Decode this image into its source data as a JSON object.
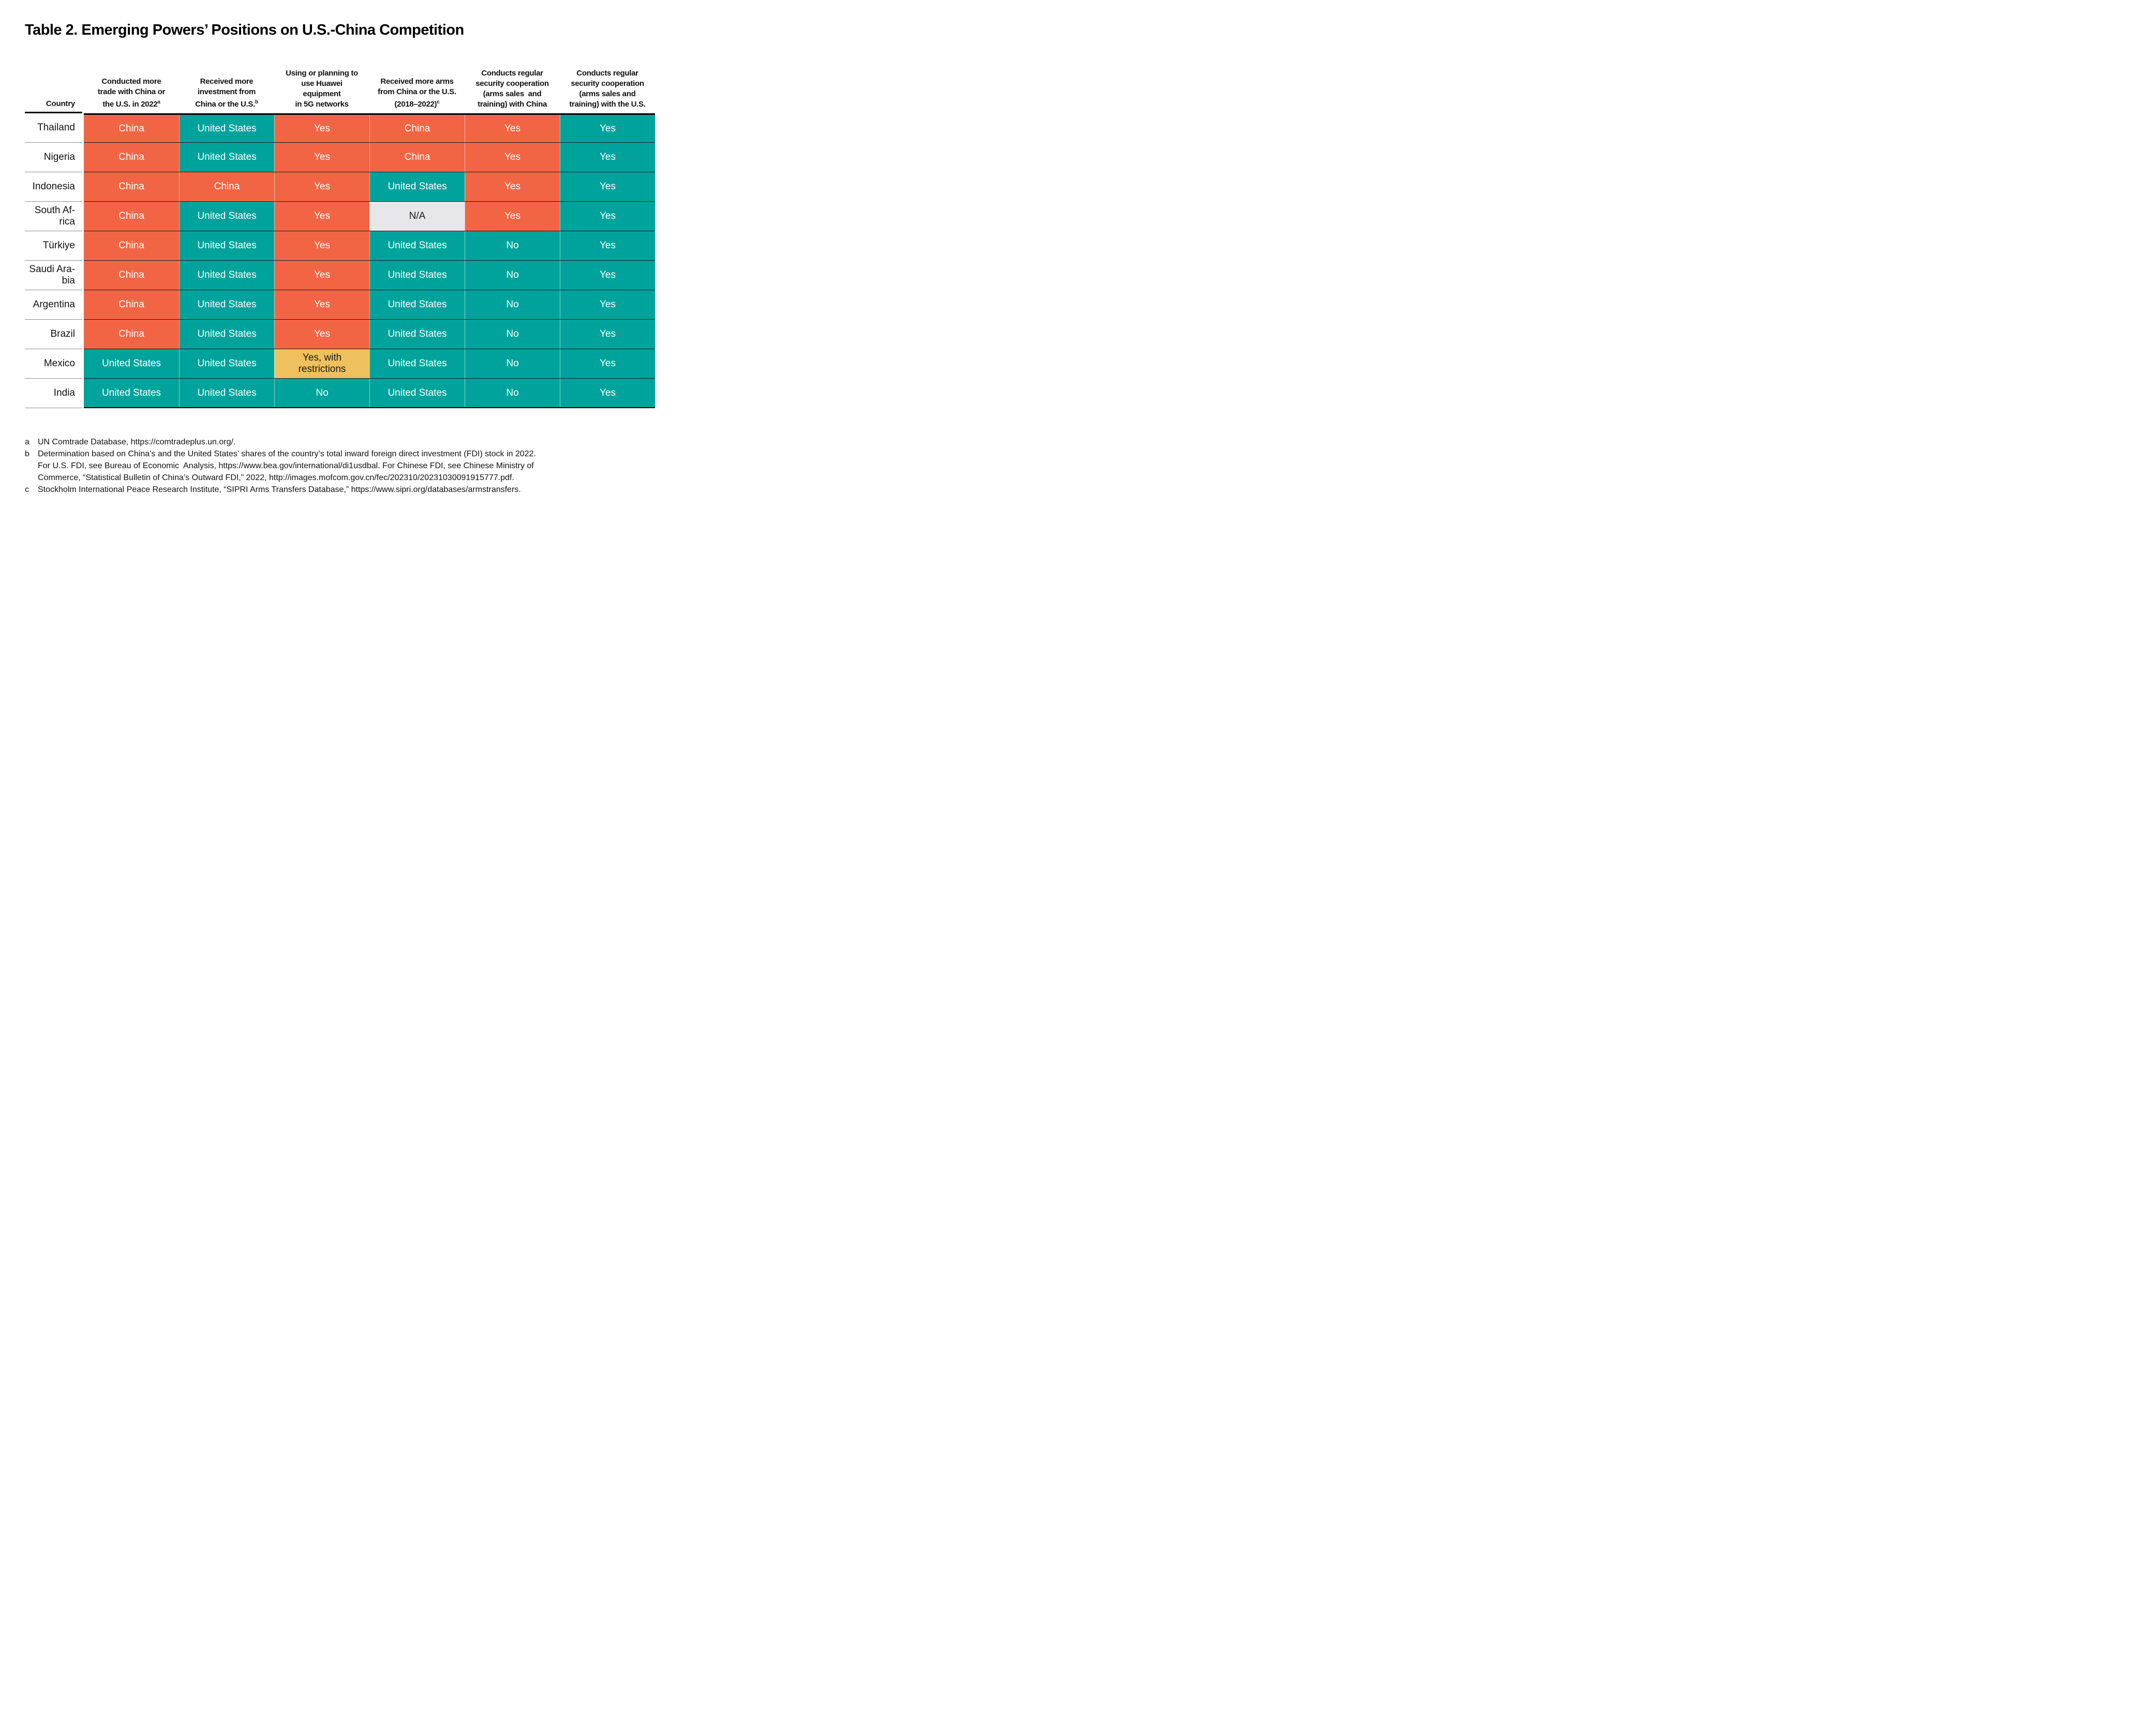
{
  "title": "Table 2. Emerging Powers’ Positions on U.S.-China Competition",
  "colors": {
    "china": {
      "bg": "#F16545",
      "fg": "#FFFFFF"
    },
    "us": {
      "bg": "#00A39B",
      "fg": "#FFFFFF"
    },
    "na": {
      "bg": "#E7E7E9",
      "fg": "#1A1A1A"
    },
    "restricted": {
      "bg": "#EFC05E",
      "fg": "#1A1A1A"
    }
  },
  "table": {
    "country_header": "Country",
    "columns": [
      {
        "lines": [
          "Conducted more",
          "trade with China or",
          "the U.S. in 2022"
        ],
        "sup": "a"
      },
      {
        "lines": [
          "Received more",
          "investment from",
          "China or the U.S."
        ],
        "sup": "b"
      },
      {
        "lines": [
          "Using or planning to",
          "use Huawei",
          "equipment",
          "in 5G networks"
        ]
      },
      {
        "lines": [
          "Received more arms",
          "from China or the U.S.",
          "(2018–2022)"
        ],
        "sup": "c"
      },
      {
        "lines": [
          "Conducts regular",
          "security cooperation",
          "(arms sales  and",
          "training) with China"
        ]
      },
      {
        "lines": [
          "Conducts regular",
          "security cooperation",
          "(arms sales and",
          "training) with the U.S."
        ]
      }
    ],
    "rows": [
      {
        "country": [
          "Thailand"
        ],
        "cells": [
          {
            "lines": [
              "China"
            ],
            "type": "china"
          },
          {
            "lines": [
              "United States"
            ],
            "type": "us"
          },
          {
            "lines": [
              "Yes"
            ],
            "type": "china"
          },
          {
            "lines": [
              "China"
            ],
            "type": "china"
          },
          {
            "lines": [
              "Yes"
            ],
            "type": "china"
          },
          {
            "lines": [
              "Yes"
            ],
            "type": "us"
          }
        ]
      },
      {
        "country": [
          "Nigeria"
        ],
        "cells": [
          {
            "lines": [
              "China"
            ],
            "type": "china"
          },
          {
            "lines": [
              "United States"
            ],
            "type": "us"
          },
          {
            "lines": [
              "Yes"
            ],
            "type": "china"
          },
          {
            "lines": [
              "China"
            ],
            "type": "china"
          },
          {
            "lines": [
              "Yes"
            ],
            "type": "china"
          },
          {
            "lines": [
              "Yes"
            ],
            "type": "us"
          }
        ]
      },
      {
        "country": [
          "Indonesia"
        ],
        "cells": [
          {
            "lines": [
              "China"
            ],
            "type": "china"
          },
          {
            "lines": [
              "China"
            ],
            "type": "china"
          },
          {
            "lines": [
              "Yes"
            ],
            "type": "china"
          },
          {
            "lines": [
              "United States"
            ],
            "type": "us"
          },
          {
            "lines": [
              "Yes"
            ],
            "type": "china"
          },
          {
            "lines": [
              "Yes"
            ],
            "type": "us"
          }
        ]
      },
      {
        "country": [
          "South Af-",
          "rica"
        ],
        "cells": [
          {
            "lines": [
              "China"
            ],
            "type": "china"
          },
          {
            "lines": [
              "United States"
            ],
            "type": "us"
          },
          {
            "lines": [
              "Yes"
            ],
            "type": "china"
          },
          {
            "lines": [
              "N/A"
            ],
            "type": "na"
          },
          {
            "lines": [
              "Yes"
            ],
            "type": "china"
          },
          {
            "lines": [
              "Yes"
            ],
            "type": "us"
          }
        ]
      },
      {
        "country": [
          "Türkiye"
        ],
        "cells": [
          {
            "lines": [
              "China"
            ],
            "type": "china"
          },
          {
            "lines": [
              "United States"
            ],
            "type": "us"
          },
          {
            "lines": [
              "Yes"
            ],
            "type": "china"
          },
          {
            "lines": [
              "United States"
            ],
            "type": "us"
          },
          {
            "lines": [
              "No"
            ],
            "type": "us"
          },
          {
            "lines": [
              "Yes"
            ],
            "type": "us"
          }
        ]
      },
      {
        "country": [
          "Saudi Ara-",
          "bia"
        ],
        "cells": [
          {
            "lines": [
              "China"
            ],
            "type": "china"
          },
          {
            "lines": [
              "United States"
            ],
            "type": "us"
          },
          {
            "lines": [
              "Yes"
            ],
            "type": "china"
          },
          {
            "lines": [
              "United States"
            ],
            "type": "us"
          },
          {
            "lines": [
              "No"
            ],
            "type": "us"
          },
          {
            "lines": [
              "Yes"
            ],
            "type": "us"
          }
        ]
      },
      {
        "country": [
          "Argentina"
        ],
        "cells": [
          {
            "lines": [
              "China"
            ],
            "type": "china"
          },
          {
            "lines": [
              "United States"
            ],
            "type": "us"
          },
          {
            "lines": [
              "Yes"
            ],
            "type": "china"
          },
          {
            "lines": [
              "United States"
            ],
            "type": "us"
          },
          {
            "lines": [
              "No"
            ],
            "type": "us"
          },
          {
            "lines": [
              "Yes"
            ],
            "type": "us"
          }
        ]
      },
      {
        "country": [
          "Brazil"
        ],
        "cells": [
          {
            "lines": [
              "China"
            ],
            "type": "china"
          },
          {
            "lines": [
              "United States"
            ],
            "type": "us"
          },
          {
            "lines": [
              "Yes"
            ],
            "type": "china"
          },
          {
            "lines": [
              "United States"
            ],
            "type": "us"
          },
          {
            "lines": [
              "No"
            ],
            "type": "us"
          },
          {
            "lines": [
              "Yes"
            ],
            "type": "us"
          }
        ]
      },
      {
        "country": [
          "Mexico"
        ],
        "cells": [
          {
            "lines": [
              "United States"
            ],
            "type": "us"
          },
          {
            "lines": [
              "United States"
            ],
            "type": "us"
          },
          {
            "lines": [
              "Yes, with",
              "restrictions"
            ],
            "type": "restricted"
          },
          {
            "lines": [
              "United States"
            ],
            "type": "us"
          },
          {
            "lines": [
              "No"
            ],
            "type": "us"
          },
          {
            "lines": [
              "Yes"
            ],
            "type": "us"
          }
        ]
      },
      {
        "country": [
          "India"
        ],
        "cells": [
          {
            "lines": [
              "United States"
            ],
            "type": "us"
          },
          {
            "lines": [
              "United States"
            ],
            "type": "us"
          },
          {
            "lines": [
              "No"
            ],
            "type": "us"
          },
          {
            "lines": [
              "United States"
            ],
            "type": "us"
          },
          {
            "lines": [
              "No"
            ],
            "type": "us"
          },
          {
            "lines": [
              "Yes"
            ],
            "type": "us"
          }
        ]
      }
    ]
  },
  "footnotes": [
    {
      "marker": "a",
      "lines": [
        "UN Comtrade Database, https://comtradeplus.un.org/."
      ]
    },
    {
      "marker": "b",
      "lines": [
        "Determination based on China’s and the United States’ shares of the country’s total inward foreign direct investment (FDI) stock in 2022.",
        "For U.S. FDI, see Bureau of Economic  Analysis, https://www.bea.gov/international/di1usdbal. For Chinese FDI, see Chinese Ministry of",
        "Commerce, “Statistical Bulletin of China’s Outward FDI,” 2022, http://images.mofcom.gov.cn/fec/202310/20231030091915777.pdf."
      ]
    },
    {
      "marker": "c",
      "lines": [
        "Stockholm International Peace Research Institute, “SIPRI Arms Transfers Database,” https://www.sipri.org/databases/armstransfers."
      ]
    }
  ]
}
